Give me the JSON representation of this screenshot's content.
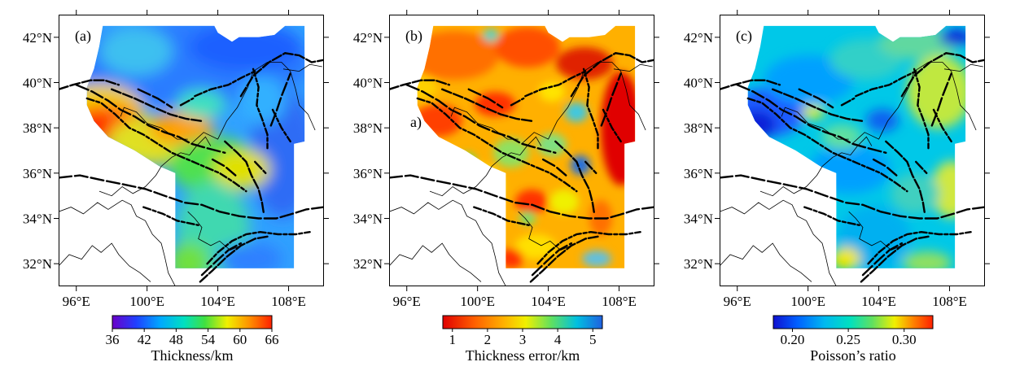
{
  "map": {
    "lon_range": [
      95,
      110
    ],
    "lat_range": [
      31,
      43
    ],
    "lon_ticks": [
      "96°E",
      "100°E",
      "104°E",
      "108°E"
    ],
    "lon_tick_values": [
      96,
      100,
      104,
      108
    ],
    "lat_ticks": [
      "42°N",
      "40°N",
      "38°N",
      "36°N",
      "34°N",
      "32°N"
    ],
    "lat_tick_values": [
      42,
      40,
      38,
      36,
      34,
      32
    ]
  },
  "panels": [
    {
      "tag": "(a)",
      "colormap": "rainbow-thickness",
      "colors": [
        "#6a00c8",
        "#2040ff",
        "#00a8ff",
        "#00e0c0",
        "#40e040",
        "#f0f000",
        "#ff9000",
        "#ff2000"
      ],
      "colorbar": {
        "title": "Thickness/km",
        "ticks": [
          "36",
          "42",
          "48",
          "54",
          "60",
          "66"
        ]
      }
    },
    {
      "tag": "(b)",
      "extra_label": "a)",
      "colormap": "red-to-blue",
      "colors": [
        "#e00000",
        "#ff6000",
        "#ffb000",
        "#f0f000",
        "#60e060",
        "#00c0e0",
        "#2060e0"
      ],
      "colorbar": {
        "title": "Thickness error/km",
        "ticks": [
          "1",
          "2",
          "3",
          "4",
          "5"
        ]
      }
    },
    {
      "tag": "(c)",
      "colormap": "rainbow-poisson",
      "colors": [
        "#1010d0",
        "#0060ff",
        "#00b8f0",
        "#00e0c0",
        "#60e060",
        "#f0f000",
        "#ff8000",
        "#ff2000"
      ],
      "colorbar": {
        "title": "Poisson’s ratio",
        "ticks": [
          "0.20",
          "0.25",
          "0.30"
        ]
      }
    }
  ]
}
